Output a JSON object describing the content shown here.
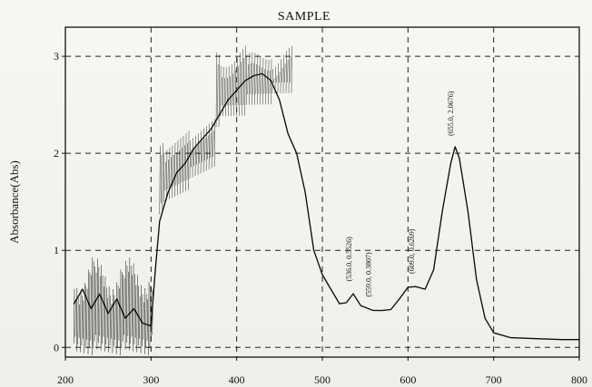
{
  "chart_data": {
    "type": "line",
    "title": "SAMPLE",
    "xlabel": "",
    "ylabel": "Absorbance(Abs)",
    "xlim": [
      200,
      800
    ],
    "ylim": [
      -0.1,
      3.3
    ],
    "grid": true,
    "x_ticks": [
      200,
      300,
      400,
      500,
      600,
      700,
      800
    ],
    "y_ticks": [
      0,
      1,
      2,
      3
    ],
    "series": [
      {
        "points": [
          [
            210,
            0.45
          ],
          [
            220,
            0.6
          ],
          [
            230,
            0.4
          ],
          [
            240,
            0.55
          ],
          [
            250,
            0.35
          ],
          [
            260,
            0.5
          ],
          [
            270,
            0.3
          ],
          [
            280,
            0.4
          ],
          [
            290,
            0.25
          ],
          [
            300,
            0.22
          ],
          [
            305,
            0.8
          ],
          [
            310,
            1.3
          ],
          [
            320,
            1.6
          ],
          [
            330,
            1.8
          ],
          [
            340,
            1.9
          ],
          [
            350,
            2.05
          ],
          [
            360,
            2.15
          ],
          [
            370,
            2.25
          ],
          [
            380,
            2.4
          ],
          [
            390,
            2.55
          ],
          [
            400,
            2.65
          ],
          [
            410,
            2.75
          ],
          [
            420,
            2.8
          ],
          [
            430,
            2.82
          ],
          [
            440,
            2.75
          ],
          [
            450,
            2.55
          ],
          [
            460,
            2.2
          ],
          [
            470,
            2.0
          ],
          [
            480,
            1.6
          ],
          [
            490,
            1.0
          ],
          [
            500,
            0.75
          ],
          [
            510,
            0.6
          ],
          [
            520,
            0.45
          ],
          [
            528,
            0.46
          ],
          [
            536,
            0.5526
          ],
          [
            545,
            0.43
          ],
          [
            559,
            0.3807
          ],
          [
            570,
            0.38
          ],
          [
            580,
            0.39
          ],
          [
            590,
            0.5
          ],
          [
            600,
            0.62
          ],
          [
            609,
            0.6269
          ],
          [
            620,
            0.6
          ],
          [
            630,
            0.8
          ],
          [
            640,
            1.4
          ],
          [
            650,
            1.9
          ],
          [
            655,
            2.0676
          ],
          [
            660,
            1.95
          ],
          [
            670,
            1.4
          ],
          [
            680,
            0.7
          ],
          [
            690,
            0.3
          ],
          [
            700,
            0.15
          ],
          [
            720,
            0.1
          ],
          [
            750,
            0.09
          ],
          [
            780,
            0.08
          ],
          [
            800,
            0.08
          ]
        ]
      }
    ],
    "annotations": [
      "(536.0, 0.5526)",
      "(559.0, 0.3807)",
      "(609.0, 0.6269)",
      "(655.0, 2.0676)"
    ]
  }
}
